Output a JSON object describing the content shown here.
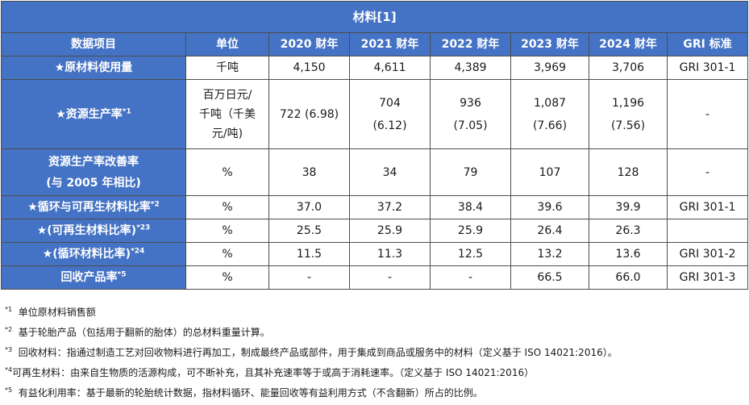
{
  "title": "材料[1]",
  "header": {
    "item": "数据项目",
    "unit": "单位",
    "y2020": "2020 财年",
    "y2021": "2021 财年",
    "y2022": "2022 财年",
    "y2023": "2023 财年",
    "y2024": "2024 财年",
    "gri": "GRI 标准"
  },
  "rows": [
    {
      "label": "★原材料使用量",
      "sup": "",
      "unit": "千吨",
      "v2020": "4,150",
      "v2021": "4,611",
      "v2022": "4,389",
      "v2023": "3,969",
      "v2024": "3,706",
      "gri": "GRI 301-1"
    },
    {
      "label": "★资源生产率",
      "sup": "*1",
      "unit_l1": "百万日元/",
      "unit_l2": "千吨（千美",
      "unit_l3": "元/吨)",
      "v2020": "722 (6.98)",
      "v2021_a": "704",
      "v2021_b": "(6.12)",
      "v2022_a": "936",
      "v2022_b": "(7.05)",
      "v2023_a": "1,087",
      "v2023_b": "(7.66)",
      "v2024_a": "1,196",
      "v2024_b": "(7.56)",
      "gri": "-"
    },
    {
      "label_l1": "资源生产率改善率",
      "label_l2": "(与 2005 年相比)",
      "unit": "%",
      "v2020": "38",
      "v2021": "34",
      "v2022": "79",
      "v2023": "107",
      "v2024": "128",
      "gri": "-"
    },
    {
      "label": "★循环与可再生材料比率",
      "sup": "*2",
      "unit": "%",
      "v2020": "37.0",
      "v2021": "37.2",
      "v2022": "38.4",
      "v2023": "39.6",
      "v2024": "39.9",
      "gri": "GRI 301-1"
    },
    {
      "label": "★(可再生材料比率)",
      "sup": "*23",
      "unit": "%",
      "v2020": "25.5",
      "v2021": "25.9",
      "v2022": "25.9",
      "v2023": "26.4",
      "v2024": "26.3",
      "gri": ""
    },
    {
      "label": "★(循环材料比率)",
      "sup": "*24",
      "unit": "%",
      "v2020": "11.5",
      "v2021": "11.3",
      "v2022": "12.5",
      "v2023": "13.2",
      "v2024": "13.6",
      "gri": "GRI 301-2"
    },
    {
      "label": "回收产品率",
      "sup": "*5",
      "unit": "%",
      "v2020": "-",
      "v2021": "-",
      "v2022": "-",
      "v2023": "66.5",
      "v2024": "66.0",
      "gri": "GRI 301-3"
    }
  ],
  "notes": [
    {
      "mark": "*1",
      "text": "单位原材料销售额"
    },
    {
      "mark": "*2",
      "text": "基于轮胎产品（包括用于翻新的胎体）的总材料重量计算。"
    },
    {
      "mark": "*3",
      "text": "回收材料：指通过制造工艺对回收物料进行再加工，制成最终产品或部件，用于集成到商品或服务中的材料（定义基于 ISO 14021:2016）。"
    },
    {
      "mark": "*4",
      "text": "可再生材料：由来自生物质的活源构成，可不断补充，且其补充速率等于或高于消耗速率。（定义基于 ISO 14021:2016）"
    },
    {
      "mark": "*5",
      "text": "有益化利用率：基于最新的轮胎统计数据，指材料循环、能量回收等有益利用方式（不含翻新）所占的比例。"
    }
  ]
}
